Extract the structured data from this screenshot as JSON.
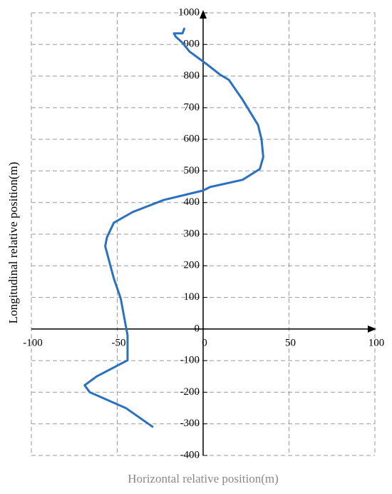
{
  "chart_data": {
    "type": "line",
    "xlabel": "Horizontal relative position(m)",
    "ylabel": "Longitudinal relative position(m)",
    "series": [
      {
        "color": "#2a72c0",
        "x": [
          -29.5,
          -45,
          -66,
          -69,
          -62,
          -44,
          -44,
          -48,
          -52,
          -57,
          -56,
          -52,
          -41,
          -23,
          0,
          4,
          23,
          33,
          35,
          34,
          32,
          23,
          15,
          10,
          2,
          -8,
          -12,
          -16,
          -17,
          -12,
          -11
        ],
        "values": [
          -309,
          -250,
          -200,
          -178,
          -150,
          -99,
          -20,
          97,
          160,
          262,
          290,
          336,
          370,
          408,
          438,
          449,
          472,
          506,
          544,
          600,
          645,
          725,
          788,
          804,
          838,
          878,
          905,
          925,
          935,
          935,
          950
        ]
      }
    ],
    "xlim": [
      -100,
      100
    ],
    "xticks": [
      -100,
      -50,
      0,
      50,
      100
    ],
    "ylim": [
      -400,
      1000
    ],
    "yticks": [
      -400,
      -300,
      -200,
      -100,
      0,
      100,
      200,
      300,
      400,
      500,
      600,
      700,
      800,
      900,
      1000
    ],
    "grid": true
  }
}
